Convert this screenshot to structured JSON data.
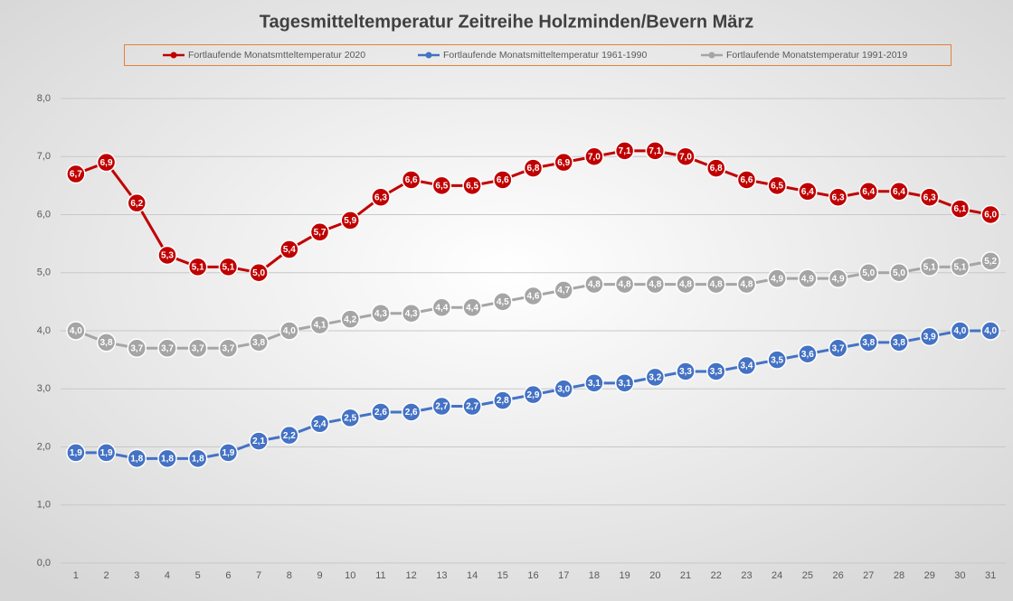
{
  "chart_data": {
    "type": "line",
    "title": "Tagesmitteltemperatur Zeitreihe Holzminden/Bevern März",
    "categories": [
      "1",
      "2",
      "3",
      "4",
      "5",
      "6",
      "7",
      "8",
      "9",
      "10",
      "11",
      "12",
      "13",
      "14",
      "15",
      "16",
      "17",
      "18",
      "19",
      "20",
      "21",
      "22",
      "23",
      "24",
      "25",
      "26",
      "27",
      "28",
      "29",
      "30",
      "31"
    ],
    "series": [
      {
        "name": "Fortlaufende Monatsmtteltemperatur 2020",
        "color": "#c00000",
        "values": [
          6.7,
          6.9,
          6.2,
          5.3,
          5.1,
          5.1,
          5.0,
          5.4,
          5.7,
          5.9,
          6.3,
          6.6,
          6.5,
          6.5,
          6.6,
          6.8,
          6.9,
          7.0,
          7.1,
          7.1,
          7.0,
          6.8,
          6.6,
          6.5,
          6.4,
          6.3,
          6.4,
          6.4,
          6.3,
          6.1,
          6.0
        ],
        "value_labels": [
          "6,7",
          "6,9",
          "6,2",
          "5,3",
          "5,1",
          "5,1",
          "5,0",
          "5,4",
          "5,7",
          "5,9",
          "6,3",
          "6,6",
          "6,5",
          "6,5",
          "6,6",
          "6,8",
          "6,9",
          "7,0",
          "7,1",
          "7,1",
          "7,0",
          "6,8",
          "6,6",
          "6,5",
          "6,4",
          "6,3",
          "6,4",
          "6,4",
          "6,3",
          "6,1",
          "6,0"
        ]
      },
      {
        "name": "Fortlaufende Monatsmitteltemperatur 1961-1990",
        "color": "#4472c4",
        "values": [
          1.9,
          1.9,
          1.8,
          1.8,
          1.8,
          1.9,
          2.1,
          2.2,
          2.4,
          2.5,
          2.6,
          2.6,
          2.7,
          2.7,
          2.8,
          2.9,
          3.0,
          3.1,
          3.1,
          3.2,
          3.3,
          3.3,
          3.4,
          3.5,
          3.6,
          3.7,
          3.8,
          3.8,
          3.9,
          4.0,
          4.0
        ],
        "value_labels": [
          "1,9",
          "1,9",
          "1,8",
          "1,8",
          "1,8",
          "1,9",
          "2,1",
          "2,2",
          "2,4",
          "2,5",
          "2,6",
          "2,6",
          "2,7",
          "2,7",
          "2,8",
          "2,9",
          "3,0",
          "3,1",
          "3,1",
          "3,2",
          "3,3",
          "3,3",
          "3,4",
          "3,5",
          "3,6",
          "3,7",
          "3,8",
          "3,8",
          "3,9",
          "4,0",
          "4,0"
        ]
      },
      {
        "name": "Fortlaufende Monatstemperatur 1991-2019",
        "color": "#a5a5a5",
        "values": [
          4.0,
          3.8,
          3.7,
          3.7,
          3.7,
          3.7,
          3.8,
          4.0,
          4.1,
          4.2,
          4.3,
          4.3,
          4.4,
          4.4,
          4.5,
          4.6,
          4.7,
          4.8,
          4.8,
          4.8,
          4.8,
          4.8,
          4.8,
          4.9,
          4.9,
          4.9,
          5.0,
          5.0,
          5.1,
          5.1,
          5.2
        ],
        "value_labels": [
          "4,0",
          "3,8",
          "3,7",
          "3,7",
          "3,7",
          "3,7",
          "3,8",
          "4,0",
          "4,1",
          "4,2",
          "4,3",
          "4,3",
          "4,4",
          "4,4",
          "4,5",
          "4,6",
          "4,7",
          "4,8",
          "4,8",
          "4,8",
          "4,8",
          "4,8",
          "4,8",
          "4,9",
          "4,9",
          "4,9",
          "5,0",
          "5,0",
          "5,1",
          "5,1",
          "5,2"
        ]
      }
    ],
    "ylim": [
      0,
      8
    ],
    "yticks": [
      {
        "value": 0,
        "label": "0,0"
      },
      {
        "value": 1,
        "label": "1,0"
      },
      {
        "value": 2,
        "label": "2,0"
      },
      {
        "value": 3,
        "label": "3,0"
      },
      {
        "value": 4,
        "label": "4,0"
      },
      {
        "value": 5,
        "label": "5,0"
      },
      {
        "value": 6,
        "label": "6,0"
      },
      {
        "value": 7,
        "label": "7,0"
      },
      {
        "value": 8,
        "label": "8,0"
      }
    ],
    "grid": true
  }
}
